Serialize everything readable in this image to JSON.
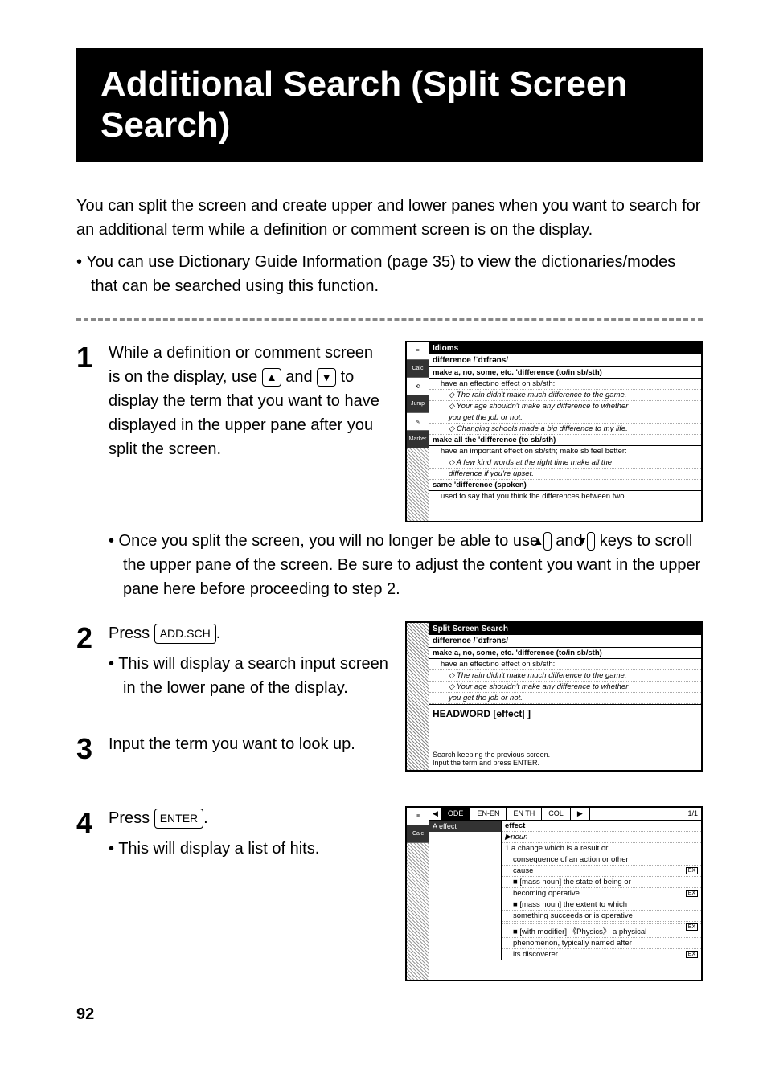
{
  "title": "Additional Search (Split Screen Search)",
  "intro": "You can split the screen and create upper and lower panes when you want to search for an additional term while a definition or comment screen is on the display.",
  "introBullet": "• You can use Dictionary Guide Information (page 35) to view the dictionaries/modes that can be searched using this function.",
  "step1": {
    "num": "1",
    "text": "While a definition or comment screen is on the display, use ▲ and ▼ to display the term that you want to have displayed in the upper pane after you split the screen.",
    "sub": "• Once you split the screen, you will no longer be able to use ▲ and ▼ keys to scroll the upper pane of the screen. Be sure to adjust the content you want in the upper pane here before proceeding to step 2."
  },
  "step2": {
    "num": "2",
    "text_pre": "Press ",
    "key": "ADD.SCH",
    "text_post": ".",
    "sub": "• This will display a search input screen in the lower pane of the display."
  },
  "step3": {
    "num": "3",
    "text": "Input the term you want to look up."
  },
  "step4": {
    "num": "4",
    "text_pre": "Press ",
    "key": "ENTER",
    "text_post": ".",
    "sub": "• This will display a list of hits."
  },
  "ss1": {
    "titlebar": "Idioms",
    "ipa": "difference /ˈdɪfrəns/",
    "lines": [
      {
        "t": "make a, no, some, etc. 'difference (to/in sb/sth)",
        "b": true
      },
      {
        "t": "have an effect/no effect on sb/sth:",
        "i": 1
      },
      {
        "t": "◇ The rain didn't make much difference to the game.",
        "i": 2,
        "it": true
      },
      {
        "t": "◇ Your age shouldn't make any difference to whether",
        "i": 2,
        "it": true
      },
      {
        "t": "you get the job or not.",
        "i": 2,
        "it": true
      },
      {
        "t": "◇ Changing schools made a big difference to my life.",
        "i": 2,
        "it": true
      },
      {
        "t": "make all the 'difference (to sb/sth)",
        "b": true
      },
      {
        "t": "have an important effect on sb/sth; make sb feel better:",
        "i": 1
      },
      {
        "t": "◇ A few kind words at the right time make all the",
        "i": 2,
        "it": true
      },
      {
        "t": "difference if you're upset.",
        "i": 2,
        "it": true
      },
      {
        "t": "same 'difference (spoken)",
        "b": true
      },
      {
        "t": "used to say that you think the differences between two",
        "i": 1
      }
    ]
  },
  "ss2": {
    "titlebar": "Split Screen Search",
    "ipa": "difference /ˈdɪfrəns/",
    "lines": [
      {
        "t": "make a, no, some, etc. 'difference (to/in sb/sth)",
        "b": true
      },
      {
        "t": "have an effect/no effect on sb/sth:",
        "i": 1
      },
      {
        "t": "◇ The rain didn't make much difference to the game.",
        "i": 2,
        "it": true
      },
      {
        "t": "◇ Your age shouldn't make any difference to whether",
        "i": 2,
        "it": true
      },
      {
        "t": "you get the job or not.",
        "i": 2,
        "it": true
      }
    ],
    "headword": "HEADWORD [effect|                              ]",
    "footer1": "Search keeping the previous screen.",
    "footer2": "Input the term and press ENTER."
  },
  "ss3": {
    "tabs": [
      "ODE",
      "EN-EN",
      "EN TH",
      "COL",
      "▶"
    ],
    "pager": "1/1",
    "search": "effect",
    "right_head": "effect",
    "lines": [
      {
        "t": "▶noun",
        "it": true
      },
      {
        "t": "1 a change which is a result or"
      },
      {
        "t": "consequence of an action or other",
        "i": 1
      },
      {
        "t": "cause",
        "i": 1,
        "ex": true
      },
      {
        "t": "■ [mass noun] the state of being or",
        "i": 1
      },
      {
        "t": "becoming operative",
        "i": 1,
        "ex": true
      },
      {
        "t": "■ [mass noun] the extent to which",
        "i": 1
      },
      {
        "t": "something succeeds or is operative",
        "i": 1
      },
      {
        "t": "",
        "ex": true
      },
      {
        "t": "■ [with modifier] 《Physics》 a physical",
        "i": 1
      },
      {
        "t": "phenomenon, typically named after",
        "i": 1
      },
      {
        "t": "its discoverer",
        "i": 1,
        "ex": true
      }
    ]
  },
  "pageNum": "92"
}
